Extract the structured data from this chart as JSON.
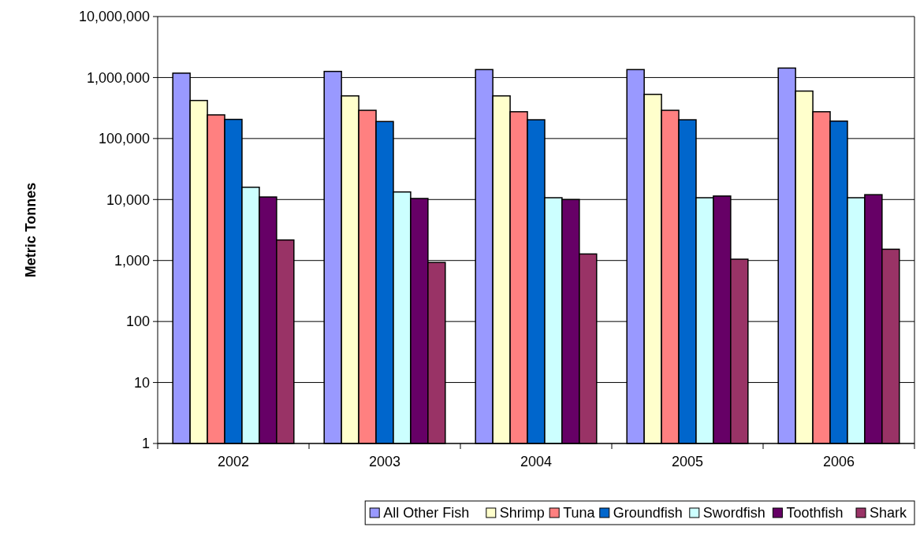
{
  "chart_data": {
    "type": "bar",
    "ylabel": "Metric Tonnes",
    "categories": [
      "2002",
      "2003",
      "2004",
      "2005",
      "2006"
    ],
    "log": true,
    "grid": "y",
    "legend": "bottom",
    "ylim": [
      1,
      10000000
    ],
    "yticks": [
      1,
      10,
      100,
      {
        "value": 1000,
        "label": "1,000"
      },
      {
        "value": 10000,
        "label": "10,000"
      },
      {
        "value": 100000,
        "label": "100,000"
      },
      {
        "value": 1000000,
        "label": "1,000,000"
      },
      {
        "value": 10000000,
        "label": "10,000,000"
      }
    ],
    "series": [
      {
        "name": "All Other Fish",
        "color": "#9999ff",
        "values": [
          1180000,
          1260000,
          1350000,
          1350000,
          1430000
        ]
      },
      {
        "name": "Shrimp",
        "color": "#ffffcc",
        "values": [
          420000,
          500000,
          500000,
          530000,
          600000
        ]
      },
      {
        "name": "Tuna",
        "color": "#ff8080",
        "values": [
          244000,
          290000,
          275000,
          290000,
          275000
        ]
      },
      {
        "name": "Groundfish",
        "color": "#0066cc",
        "values": [
          206000,
          190000,
          203000,
          203000,
          193000
        ]
      },
      {
        "name": "Swordfish",
        "color": "#ccffff",
        "values": [
          15900,
          13300,
          10700,
          10700,
          10700
        ]
      },
      {
        "name": "Toothfish",
        "color": "#660066",
        "values": [
          11000,
          10400,
          10000,
          11400,
          12000
        ]
      },
      {
        "name": "Shark",
        "color": "#993366",
        "values": [
          2170,
          930,
          1280,
          1050,
          1530
        ]
      }
    ]
  }
}
